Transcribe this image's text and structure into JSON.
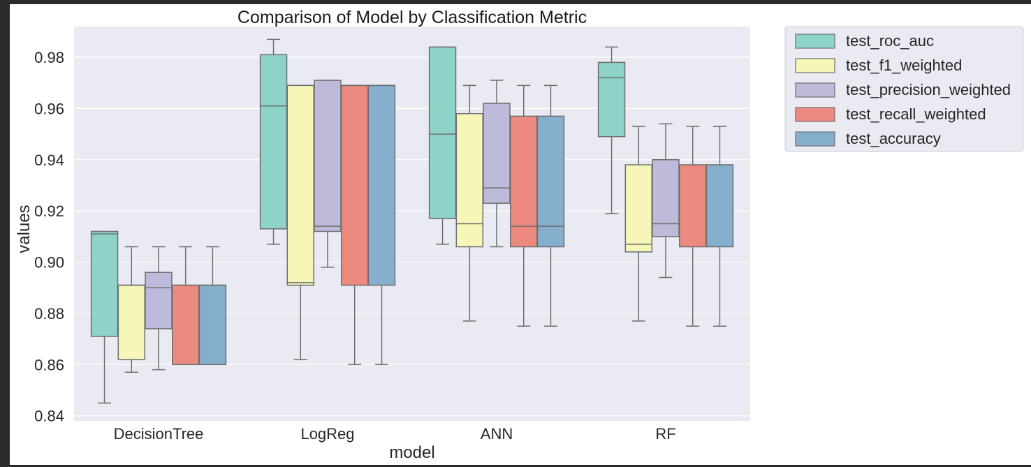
{
  "chart_data": {
    "type": "box",
    "title": "Comparison of Model by Classification Metric",
    "xlabel": "model",
    "ylabel": "values",
    "ylim": [
      0.838,
      0.992
    ],
    "yticks": [
      0.84,
      0.86,
      0.88,
      0.9,
      0.92,
      0.94,
      0.96,
      0.98
    ],
    "ytick_labels": [
      "0.84",
      "0.86",
      "0.88",
      "0.90",
      "0.92",
      "0.94",
      "0.96",
      "0.98"
    ],
    "grid": true,
    "legend_position": "outside-top-right",
    "categories": [
      "DecisionTree",
      "LogReg",
      "ANN",
      "RF"
    ],
    "series": [
      {
        "name": "test_roc_auc",
        "color": "#8dd3c7",
        "boxes": [
          {
            "whislo": 0.845,
            "q1": 0.871,
            "med": 0.911,
            "q3": 0.912,
            "whishi": 0.912
          },
          {
            "whislo": 0.907,
            "q1": 0.913,
            "med": 0.961,
            "q3": 0.981,
            "whishi": 0.987
          },
          {
            "whislo": 0.907,
            "q1": 0.917,
            "med": 0.95,
            "q3": 0.984,
            "whishi": 0.984
          },
          {
            "whislo": 0.919,
            "q1": 0.949,
            "med": 0.972,
            "q3": 0.978,
            "whishi": 0.984
          }
        ]
      },
      {
        "name": "test_f1_weighted",
        "color": "#f6f6b8",
        "boxes": [
          {
            "whislo": 0.857,
            "q1": 0.862,
            "med": 0.891,
            "q3": 0.891,
            "whishi": 0.906
          },
          {
            "whislo": 0.862,
            "q1": 0.891,
            "med": 0.892,
            "q3": 0.969,
            "whishi": 0.969
          },
          {
            "whislo": 0.877,
            "q1": 0.906,
            "med": 0.915,
            "q3": 0.958,
            "whishi": 0.969
          },
          {
            "whislo": 0.877,
            "q1": 0.904,
            "med": 0.907,
            "q3": 0.938,
            "whishi": 0.953
          }
        ]
      },
      {
        "name": "test_precision_weighted",
        "color": "#bebada",
        "boxes": [
          {
            "whislo": 0.858,
            "q1": 0.874,
            "med": 0.89,
            "q3": 0.896,
            "whishi": 0.906
          },
          {
            "whislo": 0.898,
            "q1": 0.912,
            "med": 0.914,
            "q3": 0.971,
            "whishi": 0.971
          },
          {
            "whislo": 0.906,
            "q1": 0.923,
            "med": 0.929,
            "q3": 0.962,
            "whishi": 0.971
          },
          {
            "whislo": 0.894,
            "q1": 0.91,
            "med": 0.915,
            "q3": 0.94,
            "whishi": 0.954
          }
        ]
      },
      {
        "name": "test_recall_weighted",
        "color": "#ed8a7f",
        "boxes": [
          {
            "whislo": 0.86,
            "q1": 0.86,
            "med": 0.891,
            "q3": 0.891,
            "whishi": 0.906
          },
          {
            "whislo": 0.86,
            "q1": 0.891,
            "med": 0.969,
            "q3": 0.969,
            "whishi": 0.969
          },
          {
            "whislo": 0.875,
            "q1": 0.906,
            "med": 0.914,
            "q3": 0.957,
            "whishi": 0.969
          },
          {
            "whislo": 0.875,
            "q1": 0.906,
            "med": 0.938,
            "q3": 0.938,
            "whishi": 0.953
          }
        ]
      },
      {
        "name": "test_accuracy",
        "color": "#85afcd",
        "boxes": [
          {
            "whislo": 0.86,
            "q1": 0.86,
            "med": 0.891,
            "q3": 0.891,
            "whishi": 0.906
          },
          {
            "whislo": 0.86,
            "q1": 0.891,
            "med": 0.969,
            "q3": 0.969,
            "whishi": 0.969
          },
          {
            "whislo": 0.875,
            "q1": 0.906,
            "med": 0.914,
            "q3": 0.957,
            "whishi": 0.969
          },
          {
            "whislo": 0.875,
            "q1": 0.906,
            "med": 0.938,
            "q3": 0.938,
            "whishi": 0.953
          }
        ]
      }
    ]
  }
}
